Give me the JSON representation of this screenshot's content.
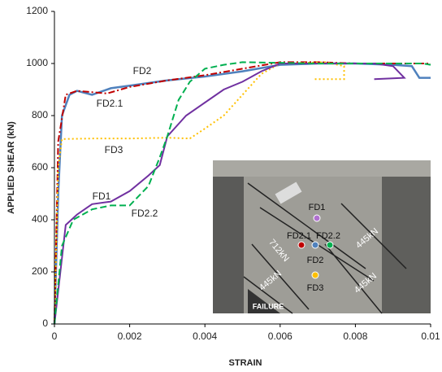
{
  "chart_data": {
    "type": "line",
    "x_label": "STRAIN",
    "y_label": "APPLIED SHEAR (kN)",
    "xlim": [
      0,
      0.01
    ],
    "xticks": [
      0,
      0.002,
      0.004,
      0.006,
      0.008,
      0.01
    ],
    "ylim": [
      0,
      1200
    ],
    "yticks": [
      0,
      200,
      400,
      600,
      800,
      1000,
      1200
    ],
    "grid": false,
    "series": [
      {
        "name": "FD2",
        "color": "#4f81bd",
        "dash": "solid",
        "x": [
          0,
          0.0001,
          0.0002,
          0.0004,
          0.0006,
          0.001,
          0.0015,
          0.002,
          0.003,
          0.004,
          0.005,
          0.006,
          0.007,
          0.008,
          0.009,
          0.0095,
          0.0097,
          0.01
        ],
        "values": [
          0,
          500,
          800,
          880,
          895,
          880,
          905,
          915,
          935,
          950,
          970,
          995,
          1000,
          1000,
          995,
          990,
          945,
          945
        ]
      },
      {
        "name": "FD2.1",
        "color": "#c00000",
        "dash": "dashdot",
        "x": [
          0,
          0.0001,
          0.0003,
          0.0006,
          0.001,
          0.0014,
          0.002,
          0.003,
          0.004,
          0.005,
          0.006,
          0.007,
          0.008,
          0.009,
          0.01
        ],
        "values": [
          0,
          700,
          880,
          895,
          890,
          885,
          910,
          935,
          955,
          980,
          1005,
          1005,
          1000,
          1000,
          1000
        ]
      },
      {
        "name": "FD3",
        "color": "#ffc000",
        "dash": "dotted",
        "x": [
          0,
          0.0001,
          0.0002,
          0.001,
          0.002,
          0.003,
          0.0036,
          0.004,
          0.0045,
          0.005,
          0.0055,
          0.006,
          0.0072,
          0.0077,
          0.0077,
          0.0069
        ],
        "values": [
          0,
          600,
          710,
          712,
          712,
          715,
          712,
          750,
          800,
          880,
          960,
          1000,
          1005,
          990,
          940,
          940
        ]
      },
      {
        "name": "FD1",
        "color": "#7030a0",
        "dash": "solid",
        "x": [
          0,
          0.0003,
          0.0006,
          0.001,
          0.0015,
          0.002,
          0.0025,
          0.0028,
          0.003,
          0.0035,
          0.004,
          0.0045,
          0.005,
          0.0055,
          0.006,
          0.0085,
          0.009,
          0.0093,
          0.0085
        ],
        "values": [
          0,
          380,
          420,
          460,
          470,
          510,
          570,
          610,
          720,
          800,
          850,
          900,
          930,
          970,
          1000,
          1000,
          990,
          945,
          940
        ]
      },
      {
        "name": "FD2.2",
        "color": "#00b050",
        "dash": "dashed",
        "x": [
          0,
          0.0002,
          0.0005,
          0.001,
          0.0015,
          0.002,
          0.0025,
          0.0028,
          0.003,
          0.0033,
          0.0036,
          0.004,
          0.0045,
          0.005,
          0.007,
          0.0098,
          0.01
        ],
        "values": [
          0,
          300,
          400,
          440,
          455,
          455,
          530,
          640,
          720,
          860,
          930,
          980,
          995,
          1005,
          1000,
          1000,
          995
        ]
      }
    ],
    "inset_labels": [
      "FD1",
      "FD2.1",
      "FD2.2",
      "FD2",
      "FD3",
      "712kN",
      "445kN",
      "445kN",
      "445kN",
      "FAILURE"
    ]
  }
}
